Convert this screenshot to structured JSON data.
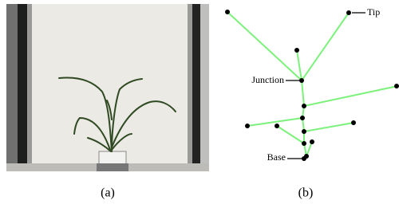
{
  "panels": [
    {
      "caption": "(a)"
    },
    {
      "caption": "(b)",
      "annotations": {
        "tip": "Tip",
        "junction": "Junction",
        "base": "Base"
      }
    }
  ]
}
